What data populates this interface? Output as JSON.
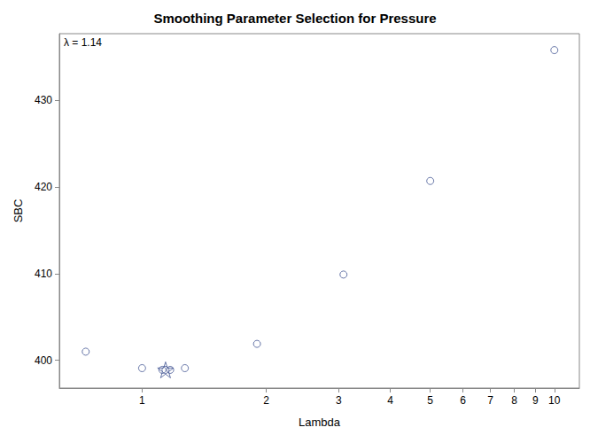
{
  "chart_data": {
    "type": "scatter",
    "title": "Smoothing Parameter Selection for Pressure",
    "x_label": "Lambda",
    "y_label": "SBC",
    "annotations": [
      "λ = 1.14"
    ],
    "log": "x",
    "grid": false,
    "xlim": [
      0.63,
      11.5
    ],
    "xticks": [
      1,
      2,
      3,
      4,
      5,
      6,
      7,
      8,
      9,
      10
    ],
    "ylim": [
      396.8,
      437.7
    ],
    "yticks": [
      400,
      410,
      420,
      430
    ],
    "color": "#445694",
    "series": [
      {
        "marker": "circle",
        "x": [
          0.73,
          1.0,
          1.12,
          1.14,
          1.17,
          1.27,
          1.9,
          3.08,
          5.0,
          10.0
        ],
        "values": [
          401.0,
          399.1,
          398.9,
          398.9,
          398.9,
          399.1,
          401.9,
          409.9,
          420.7,
          435.8
        ]
      },
      {
        "marker": "star",
        "x": [
          1.14
        ],
        "values": [
          398.9
        ]
      }
    ]
  }
}
